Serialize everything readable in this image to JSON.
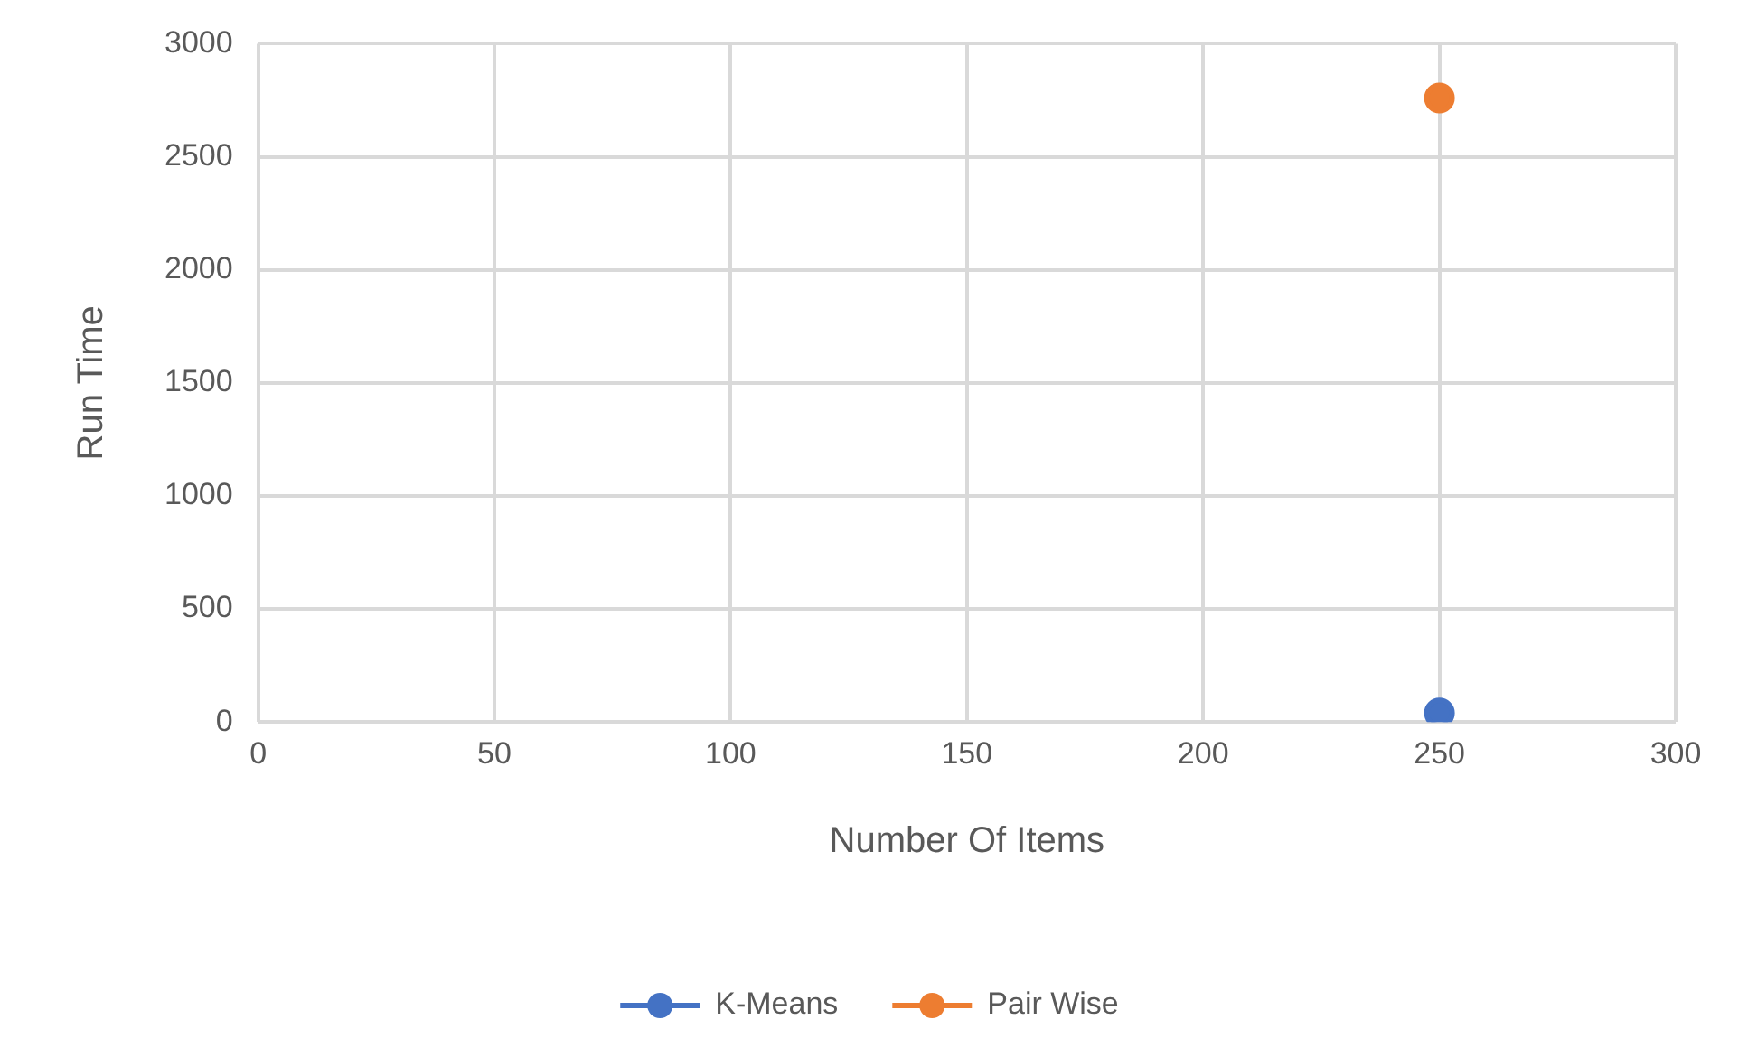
{
  "chart_data": {
    "type": "line",
    "xlabel": "Number Of Items",
    "ylabel": "Run Time",
    "x": [
      250
    ],
    "series": [
      {
        "name": "K-Means",
        "color": "#4472c4",
        "values": [
          40
        ]
      },
      {
        "name": "Pair Wise",
        "color": "#ed7d31",
        "values": [
          2760
        ]
      }
    ],
    "xlim": [
      0,
      300
    ],
    "xticks": [
      0,
      50,
      100,
      150,
      200,
      250,
      300
    ],
    "ylim": [
      0,
      3000
    ],
    "yticks": [
      0,
      500,
      1000,
      1500,
      2000,
      2500,
      3000
    ],
    "grid": true,
    "legend": "bottom",
    "marker": "circle",
    "line_style": "solid"
  }
}
